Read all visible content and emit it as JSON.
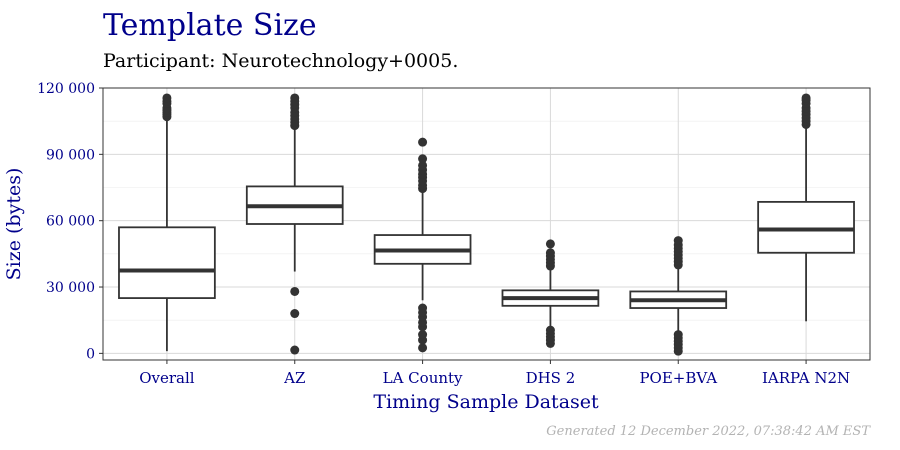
{
  "title": "Template Size",
  "subtitle": "Participant: Neurotechnology+0005.",
  "footer": "Generated 12 December 2022, 07:38:42 AM EST",
  "colors": {
    "title": "#00008b",
    "grid": "#d9d9d9",
    "box": "#333333",
    "footer": "#b3b3b3"
  },
  "chart_data": {
    "type": "box",
    "xlabel": "Timing Sample Dataset",
    "ylabel": "Size (bytes)",
    "ylim": [
      -3000,
      120000
    ],
    "yticks": [
      0,
      30000,
      60000,
      90000,
      120000
    ],
    "ytick_labels": [
      "0",
      "30 000",
      "60 000",
      "90 000",
      "120 000"
    ],
    "grid": true,
    "categories": [
      "Overall",
      "AZ",
      "LA County",
      "DHS 2",
      "POE+BVA",
      "IARPA N2N"
    ],
    "boxes": [
      {
        "name": "Overall",
        "whisker_low": 1000,
        "q1": 25000,
        "median": 37500,
        "q3": 57000,
        "whisker_high": 106000,
        "outliers": [
          107000,
          108000,
          109000,
          110000,
          111000,
          113000,
          114000,
          115500
        ]
      },
      {
        "name": "AZ",
        "whisker_low": 37000,
        "q1": 58500,
        "median": 66500,
        "q3": 75500,
        "whisker_high": 101500,
        "outliers": [
          1500,
          18000,
          28000,
          103000,
          104500,
          106000,
          107500,
          109000,
          111000,
          112500,
          114000,
          115500
        ]
      },
      {
        "name": "LA County",
        "whisker_low": 24000,
        "q1": 40500,
        "median": 46500,
        "q3": 53500,
        "whisker_high": 73000,
        "outliers": [
          2500,
          6000,
          8500,
          12000,
          14000,
          16500,
          18500,
          20500,
          74500,
          76000,
          78000,
          79500,
          81000,
          83000,
          85000,
          88000,
          95500
        ]
      },
      {
        "name": "DHS 2",
        "whisker_low": 12000,
        "q1": 21500,
        "median": 25000,
        "q3": 28500,
        "whisker_high": 38000,
        "outliers": [
          4500,
          6000,
          7500,
          9000,
          10500,
          39500,
          41000,
          42500,
          44000,
          45500,
          49500
        ]
      },
      {
        "name": "POE+BVA",
        "whisker_low": 9500,
        "q1": 20500,
        "median": 24000,
        "q3": 28000,
        "whisker_high": 38500,
        "outliers": [
          1000,
          2500,
          4000,
          5500,
          7000,
          8500,
          40000,
          41500,
          43000,
          44500,
          46000,
          47500,
          49000,
          51000
        ]
      },
      {
        "name": "IARPA N2N",
        "whisker_low": 14500,
        "q1": 45500,
        "median": 56000,
        "q3": 68500,
        "whisker_high": 102000,
        "outliers": [
          103500,
          105000,
          106500,
          108000,
          109500,
          111000,
          113000,
          114500,
          115500
        ]
      }
    ]
  }
}
